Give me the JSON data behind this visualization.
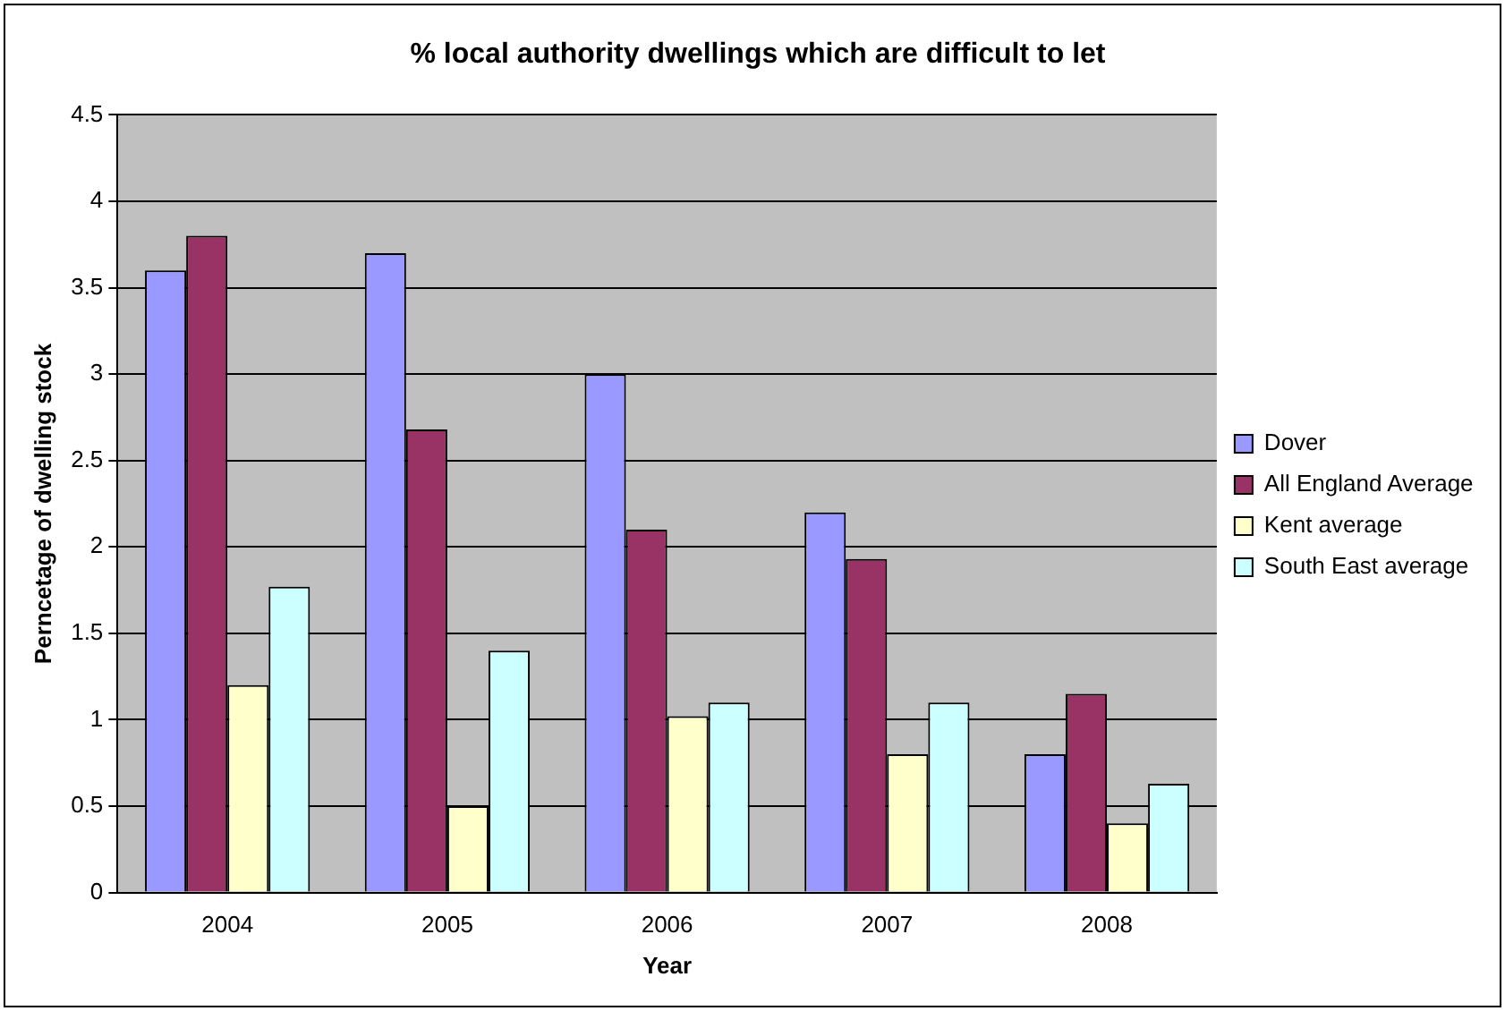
{
  "chart_data": {
    "type": "bar",
    "title": "% local authority dwellings which are difficult to let",
    "xlabel": "Year",
    "ylabel": "Perncetage of dwelling stock",
    "categories": [
      "2004",
      "2005",
      "2006",
      "2007",
      "2008"
    ],
    "series": [
      {
        "name": "Dover",
        "color": "#9999ff",
        "values": [
          3.6,
          3.7,
          3.0,
          2.2,
          0.8
        ]
      },
      {
        "name": "All England Average",
        "color": "#993366",
        "values": [
          3.8,
          2.68,
          2.1,
          1.93,
          1.15
        ]
      },
      {
        "name": "Kent average",
        "color": "#ffffcc",
        "values": [
          1.2,
          0.5,
          1.02,
          0.8,
          0.4
        ]
      },
      {
        "name": "South East average",
        "color": "#ccffff",
        "values": [
          1.77,
          1.4,
          1.1,
          1.1,
          0.63
        ]
      }
    ],
    "ylim": [
      0,
      4.5
    ],
    "yticks": [
      0,
      0.5,
      1,
      1.5,
      2,
      2.5,
      3,
      3.5,
      4,
      4.5
    ],
    "grid": "y",
    "legend": "right"
  }
}
